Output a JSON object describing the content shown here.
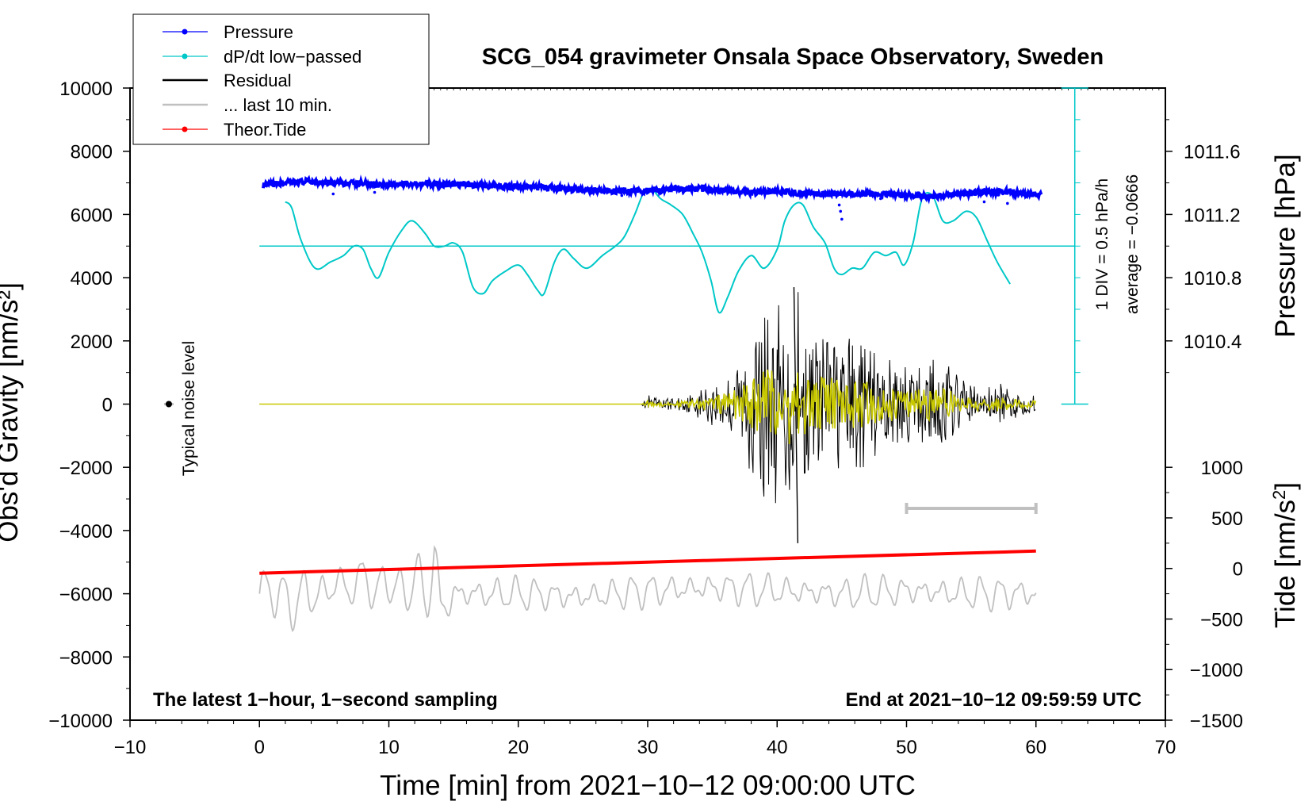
{
  "chart_data": {
    "type": "line",
    "title": "SCG_054 gravimeter Onsala Space Observatory, Sweden",
    "xlabel": "Time [min] from 2021−10−12 09:00:00 UTC",
    "ylabel": "Obs'd Gravity [nm/s²]",
    "y2label": "Pressure [hPa]",
    "y3label_text": "Tide [nm/s",
    "y3label_sup": "2",
    "y3label_end": "]",
    "xlim": [
      -10,
      70
    ],
    "ylim": [
      -10000,
      10000
    ],
    "xticks": [
      -10,
      0,
      10,
      20,
      30,
      40,
      50,
      60,
      70
    ],
    "xtick_labels": [
      "−10",
      "0",
      "10",
      "20",
      "30",
      "40",
      "50",
      "60",
      "70"
    ],
    "yticks": [
      10000,
      8000,
      6000,
      4000,
      2000,
      0,
      -2000,
      -4000,
      -6000,
      -8000,
      -10000
    ],
    "ytick_labels": [
      "10000",
      "8000",
      "6000",
      "4000",
      "2000",
      "0",
      "−2000",
      "−4000",
      "−6000",
      "−8000",
      "−10000"
    ],
    "pressure_axis": {
      "ticks": [
        1011.6,
        1011.2,
        1010.8,
        1010.4
      ],
      "labels": [
        "1011.6",
        "1011.2",
        "1010.8",
        "1010.4"
      ],
      "value_at_8000": 1011.6,
      "value_at_0": 1010.0
    },
    "tide_axis": {
      "ticks": [
        1000,
        500,
        0,
        -500,
        -1000,
        -1500
      ],
      "labels": [
        "1000",
        "500",
        "0",
        "−500",
        "−1000",
        "−1500"
      ],
      "value_at_minus2000": 1000,
      "value_at_minus10000": -1500
    },
    "legend": {
      "placement": "top-left",
      "entries": [
        {
          "label": "Pressure",
          "color": "#0000ff",
          "marker": "dot"
        },
        {
          "label": "dP/dt low−passed",
          "color": "#00c8c8",
          "marker": "dot"
        },
        {
          "label": "Residual",
          "color": "#000000",
          "marker": "none"
        },
        {
          "label": "... last 10 min.",
          "color": "#c0c0c0",
          "marker": "none"
        },
        {
          "label": "Theor.Tide",
          "color": "#ff0000",
          "marker": "dot"
        }
      ]
    },
    "series": [
      {
        "name": "Pressure",
        "color": "#0000ff",
        "x": [
          0,
          2,
          4,
          6,
          8,
          10,
          12,
          14,
          16,
          18,
          20,
          22,
          24,
          26,
          28,
          30,
          32,
          34,
          36,
          38,
          40,
          42,
          44,
          46,
          48,
          50,
          52,
          54,
          56,
          58,
          60
        ],
        "values": [
          6900,
          7000,
          7050,
          7000,
          6980,
          6950,
          6980,
          6950,
          6950,
          6900,
          6880,
          6850,
          6800,
          6780,
          6720,
          6750,
          6800,
          6820,
          6750,
          6700,
          6720,
          6680,
          6650,
          6650,
          6650,
          6600,
          6580,
          6650,
          6700,
          6720,
          6620
        ]
      },
      {
        "name": "dP/dt low−passed",
        "color": "#00c8c8",
        "x": [
          2,
          2.5,
          3.2,
          4.3,
          5.5,
          6.5,
          7.3,
          8,
          8.6,
          9.2,
          10,
          11,
          11.8,
          12.8,
          13.5,
          14.3,
          15,
          15.7,
          16.5,
          17.3,
          18,
          19,
          20,
          20.7,
          21.5,
          22,
          22.8,
          23.5,
          24.3,
          25.3,
          26.5,
          27.5,
          28.2,
          29,
          29.7,
          30.3,
          31,
          31.8,
          32.7,
          33.5,
          34.2,
          34.9,
          35.5,
          36.2,
          37,
          38,
          39,
          40,
          40.6,
          41.3,
          42,
          42.8,
          43.7,
          44.4,
          45,
          45.8,
          46.6,
          47.5,
          48.4,
          49.2,
          49.8,
          50.5,
          51.2,
          52,
          52.8,
          53.6,
          54.6,
          55.4,
          56.2,
          57,
          58
        ],
        "values": [
          6400,
          6200,
          5200,
          4300,
          4500,
          4700,
          5000,
          4900,
          4300,
          4000,
          4800,
          5500,
          5800,
          5400,
          5000,
          5000,
          5100,
          4800,
          3700,
          3500,
          3900,
          4200,
          4400,
          4100,
          3600,
          3500,
          4500,
          4900,
          4600,
          4300,
          4700,
          5000,
          5300,
          6000,
          6700,
          6800,
          6500,
          6300,
          6000,
          5400,
          4800,
          3900,
          2900,
          3400,
          4200,
          4700,
          4300,
          4900,
          5800,
          6300,
          6300,
          5600,
          5100,
          4300,
          4100,
          4300,
          4300,
          4800,
          4700,
          4800,
          4400,
          5100,
          6500,
          6600,
          5800,
          5800,
          6100,
          5900,
          5200,
          4500,
          3800
        ]
      },
      {
        "name": "Residual",
        "color": "#000000",
        "x": [
          0,
          29.5,
          30,
          31,
          32,
          33,
          34,
          35,
          36,
          37,
          38,
          39,
          40,
          40.5,
          41,
          41.3,
          41.6,
          42,
          42.5,
          43,
          44,
          45,
          46,
          47,
          48,
          49,
          50,
          51,
          52,
          53,
          54,
          55,
          56,
          57,
          58,
          59,
          60
        ],
        "values": [
          0,
          0,
          300,
          200,
          200,
          300,
          500,
          700,
          1000,
          1500,
          2200,
          3000,
          3500,
          2500,
          3800,
          3000,
          -4400,
          3000,
          2200,
          2400,
          2500,
          2000,
          2300,
          2100,
          1500,
          1800,
          1300,
          1400,
          1600,
          1500,
          900,
          700,
          500,
          700,
          500,
          400,
          300
        ]
      },
      {
        "name": "... last 10 min.",
        "color": "#c0c0c0",
        "x": [
          0,
          1,
          2,
          3,
          4,
          5,
          6,
          7,
          8,
          9,
          10,
          11,
          12,
          13,
          13.5,
          14,
          15,
          20,
          25,
          30,
          35,
          40,
          45,
          50,
          55,
          60
        ],
        "values": [
          -6000,
          -5800,
          -6300,
          -6200,
          -5900,
          -6100,
          -5500,
          -6000,
          -5300,
          -6100,
          -5400,
          -6200,
          -5300,
          -6300,
          -4600,
          -6500,
          -6000,
          -6000,
          -6100,
          -5900,
          -5800,
          -5900,
          -6000,
          -5900,
          -6000,
          -6000
        ]
      },
      {
        "name": "Theor.Tide",
        "color": "#ff0000",
        "x": [
          0,
          60
        ],
        "values": [
          -5350,
          -4650
        ]
      }
    ],
    "annotations": {
      "noise_label": "Typical noise level",
      "pressure_scale_label": "1 DIV = 0.5 hPa/h",
      "pressure_avg_label": "average = −0.0666",
      "bottom_left": "The latest 1−hour, 1−second sampling",
      "bottom_right": "End at 2021−10−12 09:59:59 UTC"
    },
    "grey_window": {
      "from": 50,
      "to": 60
    },
    "noise_marker": {
      "x": -7,
      "y": 0
    },
    "dpdt_zero_line": 5000
  },
  "colors": {
    "pressure": "#0000ff",
    "dpdt": "#00c8c8",
    "residual": "#000000",
    "last10": "#c0c0c0",
    "tide": "#ff0000",
    "highpass": "#c8c800"
  }
}
